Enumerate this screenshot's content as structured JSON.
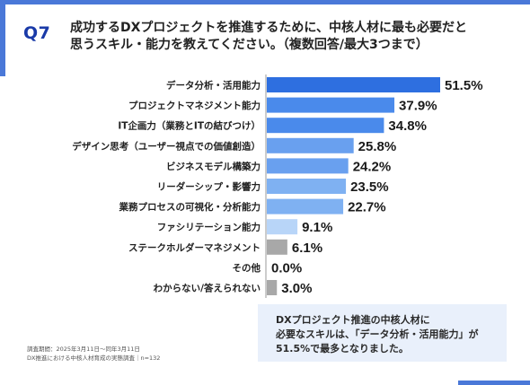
{
  "question": {
    "number": "Q7",
    "title_line1": "成功するDXプロジェクトを推進するために、中核人材に最も必要だと",
    "title_line2": "思うスキル・能力を教えてください。（複数回答/最大3つまで）"
  },
  "chart_data": {
    "type": "bar",
    "orientation": "horizontal",
    "unit": "%",
    "categories": [
      "データ分析・活用能力",
      "プロジェクトマネジメント能力",
      "IT企画力（業務とITの結びつけ）",
      "デザイン思考（ユーザー視点での価値創造）",
      "ビジネスモデル構築力",
      "リーダーシップ・影響力",
      "業務プロセスの可視化・分析能力",
      "ファシリテーション能力",
      "ステークホルダーマネジメント",
      "その他",
      "わからない/答えられない"
    ],
    "values": [
      51.5,
      37.9,
      34.8,
      25.8,
      24.2,
      23.5,
      22.7,
      9.1,
      6.1,
      0.0,
      3.0
    ],
    "value_labels": [
      "51.5%",
      "37.9%",
      "34.8%",
      "25.8%",
      "24.2%",
      "23.5%",
      "22.7%",
      "9.1%",
      "6.1%",
      "0.0%",
      "3.0%"
    ],
    "bar_colors": [
      "#2e6fe0",
      "#4a8aeb",
      "#4a8aeb",
      "#69a0ef",
      "#69a0ef",
      "#7fb1f2",
      "#7fb1f2",
      "#b8d5f8",
      "#a8a8a8",
      "#a8a8a8",
      "#a8a8a8"
    ],
    "xlim": [
      0,
      100
    ]
  },
  "summary": {
    "line1": "DXプロジェクト推進の中核人材に",
    "line2": "必要なスキルは、「データ分析・活用能力」が",
    "line3": "51.5%で最多となりました。"
  },
  "footnote": {
    "line1": "調査期間：2025年3月11日～同年3月11日",
    "line2": "DX推進における中核人材育成の実態調査｜n=132"
  }
}
